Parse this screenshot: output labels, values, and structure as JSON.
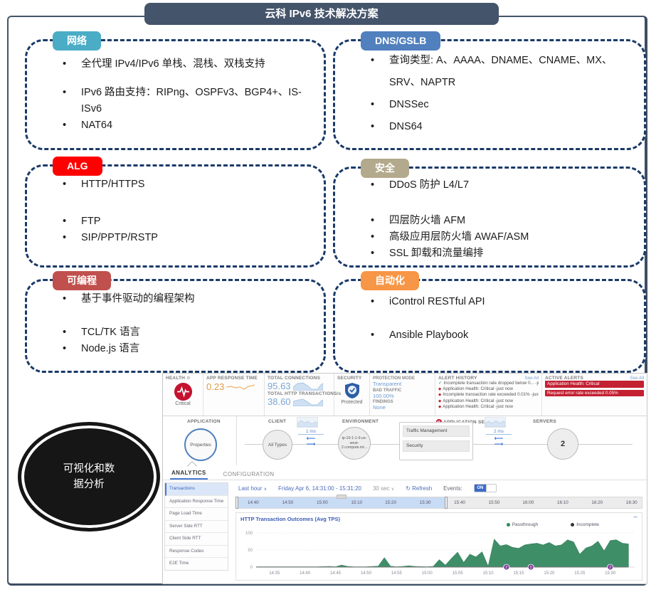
{
  "page": {
    "title": "云科 IPv6 技术解决方案"
  },
  "boxes": [
    {
      "label": "网络",
      "color": "#4bacc6",
      "bullets": [
        "全代理 IPv4/IPv6 单栈、混栈、双栈支持",
        "IPv6 路由支持：RIPng、OSPFv3、BGP4+、IS-ISv6",
        "NAT64"
      ]
    },
    {
      "label": "DNS/GSLB",
      "color": "#5080bd",
      "bullets": [
        "查询类型: A、AAAA、DNAME、CNAME、MX、SRV、NAPTR",
        "DNSSec",
        "DNS64"
      ]
    },
    {
      "label": "ALG",
      "color": "#fe0000",
      "bullets": [
        "HTTP/HTTPS",
        "FTP",
        "SIP/PPTP/RSTP"
      ]
    },
    {
      "label": "安全",
      "color": "#b3a98c",
      "bullets": [
        "DDoS 防护 L4/L7",
        "四层防火墙 AFM",
        "高级应用层防火墙 AWAF/ASM",
        "SSL 卸载和流量编排"
      ]
    },
    {
      "label": "可编程",
      "color": "#c0504d",
      "bullets": [
        "基于事件驱动的编程架构",
        "TCL/TK 语言",
        "Node.js 语言"
      ]
    },
    {
      "label": "自动化",
      "color": "#f79646",
      "bullets": [
        "iControl RESTful API",
        "Ansible Playbook"
      ]
    }
  ],
  "ellipse": {
    "line1": "可视化和数",
    "line2": "据分析"
  },
  "dashboard": {
    "health": {
      "label": "HEALTH",
      "status": "Critical"
    },
    "app_response": {
      "label": "APP RESPONSE TIME",
      "value": "0.23"
    },
    "connections": {
      "label": "TOTAL CONNECTIONS",
      "value": "95.63"
    },
    "transactions": {
      "label": "TOTAL HTTP TRANSACTIONS/s",
      "value": "38.60"
    },
    "security": {
      "label": "SECURITY",
      "status": "Protected"
    },
    "protection": {
      "mode_label": "PROTECTION MODE",
      "mode": "Transparent",
      "bad_label": "BAD TRAFFIC",
      "bad": "100.00%",
      "findings_label": "FINDINGS",
      "findings": "None"
    },
    "alert_history": {
      "label": "ALERT HISTORY",
      "see_all": "See All",
      "items": [
        {
          "icon": "check",
          "text": "Incomplete transaction rate dropped below 0... -just now"
        },
        {
          "icon": "diamond",
          "text": "Application Health: Critical -just now"
        },
        {
          "icon": "diamond",
          "text": "Incomplete transaction rate exceeded 0.01% -just now"
        },
        {
          "icon": "diamond",
          "text": "Application Health: Critical -just now"
        },
        {
          "icon": "diamond",
          "text": "Application Health: Critical -just now"
        }
      ]
    },
    "active_alerts": {
      "label": "ACTIVE ALERTS",
      "see_all": "See All",
      "items": [
        "Application Health: Critical",
        "Request error rate exceeded 0.05%"
      ]
    },
    "topology": {
      "application_label": "APPLICATION",
      "application_node": "Properties",
      "client_label": "CLIENT",
      "client_node": "All Types",
      "client_latency": "1 ms",
      "environment_label": "ENVIRONMENT",
      "environment_node": "ip-10-1-1-9.us-west-2.compute.int...",
      "services_label": "APPLICATION SERVICES",
      "services": [
        "Traffic Management",
        "Security"
      ],
      "server_latency": "2 ms",
      "servers_label": "SERVERS",
      "servers_count": "2"
    },
    "tabs": {
      "analytics": "ANALYTICS",
      "configuration": "CONFIGURATION"
    },
    "sidebar": {
      "items": [
        "Transactions",
        "Application Response Time",
        "Page Load Time",
        "Server Side RTT",
        "Client Side RTT",
        "Response Codes",
        "E2E Time"
      ],
      "active_index": 0
    },
    "toolbar": {
      "range": "Last hour",
      "date_range": "Friday Apr 6, 14:31:00 - 15:31:20",
      "interval": "30 sec",
      "refresh": "Refresh",
      "events_label": "Events:",
      "events_state": "ON"
    },
    "timeline": {
      "start": "14:35",
      "end": "16:33",
      "selection_start": "14:35",
      "selection_end": "15:36",
      "ticks": [
        "14:40",
        "14:50",
        "15:00",
        "15:10",
        "15:20",
        "15:30",
        "15:40",
        "15:50",
        "16:00",
        "16:10",
        "16:20",
        "16:30"
      ]
    }
  },
  "chart_data": {
    "type": "area",
    "title": "HTTP Transaction Outcomes (Avg TPS)",
    "legend": [
      {
        "name": "Passthrough",
        "color": "#2f8a5d"
      },
      {
        "name": "Incomplete",
        "color": "#333333"
      }
    ],
    "x_domain": [
      "14:32",
      "15:34"
    ],
    "x_ticks": [
      "14:35",
      "14:40",
      "14:45",
      "14:50",
      "14:55",
      "15:00",
      "15:05",
      "15:10",
      "15:15",
      "15:20",
      "15:25",
      "15:30"
    ],
    "ylim": [
      0,
      100
    ],
    "y_ticks": [
      0,
      50,
      100
    ],
    "series": [
      {
        "name": "Passthrough",
        "color": "#3e8e68",
        "points": [
          [
            "14:32",
            1
          ],
          [
            "14:34",
            1
          ],
          [
            "14:36",
            1
          ],
          [
            "14:38",
            1
          ],
          [
            "14:40",
            1
          ],
          [
            "14:42",
            1
          ],
          [
            "14:44",
            2
          ],
          [
            "14:45",
            1
          ],
          [
            "14:46",
            6
          ],
          [
            "14:47",
            2
          ],
          [
            "14:48",
            1
          ],
          [
            "14:50",
            1
          ],
          [
            "14:52",
            3
          ],
          [
            "14:53",
            28
          ],
          [
            "14:54",
            3
          ],
          [
            "14:55",
            1
          ],
          [
            "14:56",
            2
          ],
          [
            "14:57",
            4
          ],
          [
            "14:58",
            2
          ],
          [
            "15:00",
            1
          ],
          [
            "15:01",
            2
          ],
          [
            "15:02",
            22
          ],
          [
            "15:03",
            6
          ],
          [
            "15:04",
            26
          ],
          [
            "15:05",
            44
          ],
          [
            "15:06",
            14
          ],
          [
            "15:07",
            38
          ],
          [
            "15:08",
            30
          ],
          [
            "15:09",
            45
          ],
          [
            "15:10",
            3
          ],
          [
            "15:11",
            82
          ],
          [
            "15:12",
            62
          ],
          [
            "15:13",
            66
          ],
          [
            "15:14",
            58
          ],
          [
            "15:15",
            55
          ],
          [
            "15:16",
            65
          ],
          [
            "15:17",
            68
          ],
          [
            "15:18",
            70
          ],
          [
            "15:19",
            65
          ],
          [
            "15:20",
            72
          ],
          [
            "15:21",
            62
          ],
          [
            "15:22",
            65
          ],
          [
            "15:23",
            80
          ],
          [
            "15:24",
            74
          ],
          [
            "15:25",
            38
          ],
          [
            "15:26",
            56
          ],
          [
            "15:27",
            62
          ],
          [
            "15:28",
            76
          ],
          [
            "15:29",
            48
          ],
          [
            "15:30",
            78
          ],
          [
            "15:31",
            80
          ],
          [
            "15:32",
            70
          ],
          [
            "15:33",
            68
          ]
        ]
      },
      {
        "name": "Incomplete",
        "color": "#333333",
        "points": [
          [
            "14:32",
            0
          ],
          [
            "15:33",
            0
          ]
        ]
      }
    ],
    "event_markers": [
      {
        "time": "15:13",
        "label": "2"
      },
      {
        "time": "15:17",
        "label": "2"
      },
      {
        "time": "15:30",
        "label": "2"
      }
    ]
  }
}
